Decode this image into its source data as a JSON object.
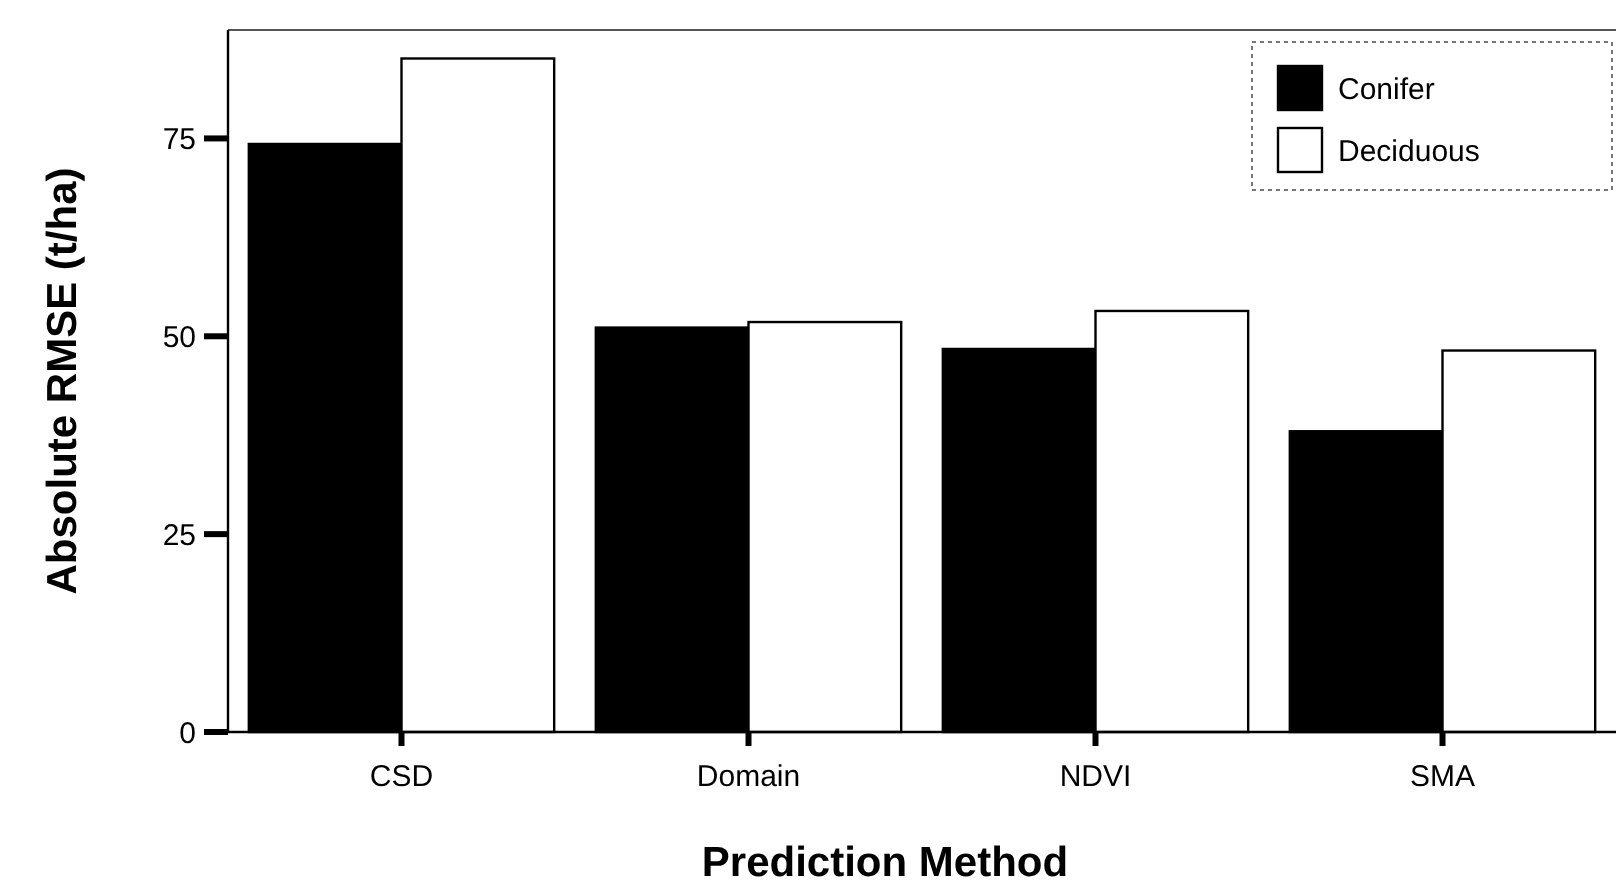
{
  "chart_data": {
    "type": "bar",
    "xlabel": "Prediction Method",
    "ylabel": "Absolute RMSE (t/ha)",
    "categories": [
      "CSD",
      "Domain",
      "NDVI",
      "SMA"
    ],
    "series": [
      {
        "name": "Conifer",
        "color": "#000000",
        "values": [
          74.3,
          51.1,
          48.4,
          38.0
        ]
      },
      {
        "name": "Deciduous",
        "color": "#ffffff",
        "values": [
          85.1,
          51.8,
          53.2,
          48.2
        ]
      }
    ],
    "ylim": [
      0,
      88.7
    ],
    "yticks": [
      0,
      25,
      50,
      75
    ],
    "grid": false,
    "legend": "top right"
  }
}
